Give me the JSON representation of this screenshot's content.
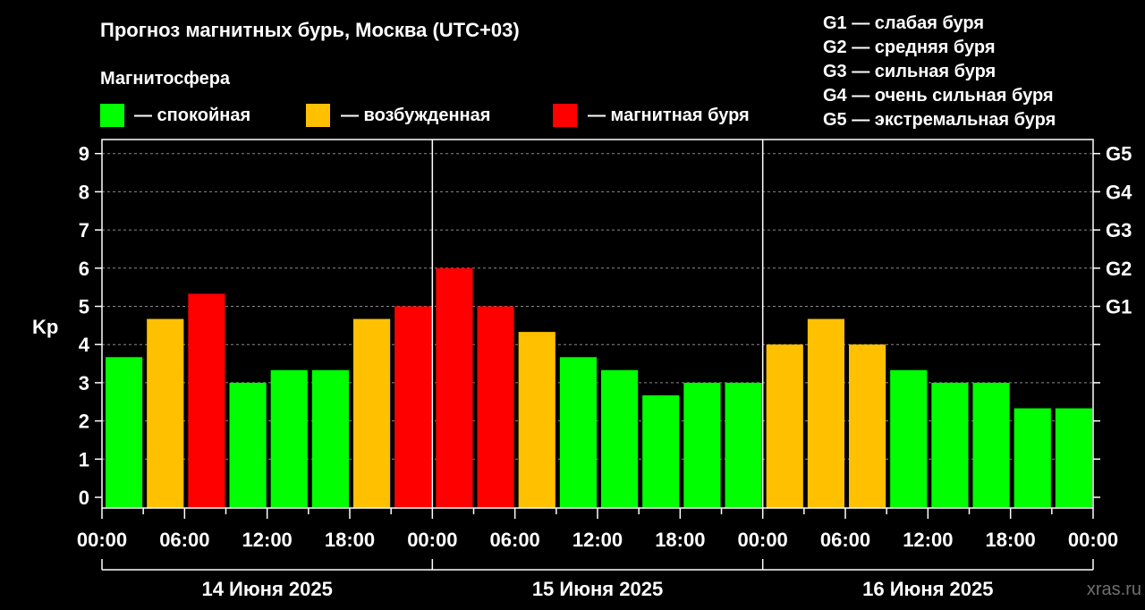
{
  "title": "Прогноз магнитных бурь, Москва (UTC+03)",
  "legend": {
    "heading": "Магнитосфера",
    "items": [
      {
        "label": "— спокойная",
        "color": "#00ff00"
      },
      {
        "label": "— возбужденная",
        "color": "#ffc000"
      },
      {
        "label": "— магнитная буря",
        "color": "#ff0000"
      }
    ]
  },
  "g_scale": [
    "G1 — слабая буря",
    "G2 — средняя буря",
    "G3 — сильная буря",
    "G4 — очень сильная буря",
    "G5 — экстремальная буря"
  ],
  "watermark": "xras.ru",
  "chart_data": {
    "type": "bar",
    "ylabel": "Kp",
    "ylim": [
      0,
      9
    ],
    "y_ticks": [
      "0",
      "1",
      "2",
      "3",
      "4",
      "5",
      "6",
      "7",
      "8",
      "9"
    ],
    "right_ticks": [
      {
        "value": 5,
        "label": "G1"
      },
      {
        "value": 6,
        "label": "G2"
      },
      {
        "value": 7,
        "label": "G3"
      },
      {
        "value": 8,
        "label": "G4"
      },
      {
        "value": 9,
        "label": "G5"
      }
    ],
    "x_tick_labels": [
      "00:00",
      "06:00",
      "12:00",
      "18:00",
      "00:00",
      "06:00",
      "12:00",
      "18:00",
      "00:00",
      "06:00",
      "12:00",
      "18:00",
      "00:00"
    ],
    "days": [
      "14 Июня 2025",
      "15 Июня 2025",
      "16 Июня 2025"
    ],
    "grid": true,
    "colors": {
      "quiet": "#00ff00",
      "active": "#ffc000",
      "storm": "#ff0000"
    },
    "values": [
      3.67,
      4.67,
      5.33,
      3.0,
      3.33,
      3.33,
      4.67,
      5.0,
      6.0,
      5.0,
      4.33,
      3.67,
      3.33,
      2.67,
      3.0,
      3.0,
      4.0,
      4.67,
      4.0,
      3.33,
      3.0,
      3.0,
      2.33,
      2.33
    ],
    "levels": [
      "quiet",
      "active",
      "storm",
      "quiet",
      "quiet",
      "quiet",
      "active",
      "storm",
      "storm",
      "storm",
      "active",
      "quiet",
      "quiet",
      "quiet",
      "quiet",
      "quiet",
      "active",
      "active",
      "active",
      "quiet",
      "quiet",
      "quiet",
      "quiet",
      "quiet"
    ]
  }
}
